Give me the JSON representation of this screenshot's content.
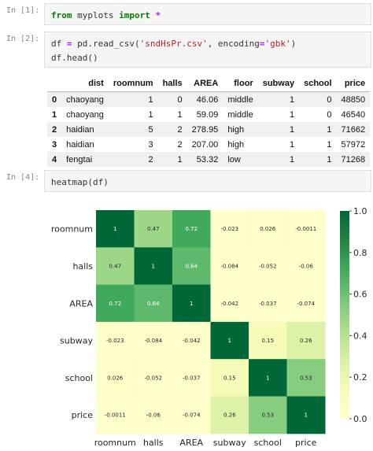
{
  "cells": [
    {
      "prompt": "In [1]:",
      "code": [
        {
          "kw": "from"
        },
        {
          "t": " myplots "
        },
        {
          "kw": "import"
        },
        {
          "t": " "
        },
        {
          "op": "*"
        }
      ]
    },
    {
      "prompt": "In [2]:",
      "code_lines": [
        [
          {
            "t": "df "
          },
          {
            "op": "="
          },
          {
            "t": " pd.read_csv("
          },
          {
            "str": "'sndHsPr.csv'"
          },
          {
            "t": ", encoding"
          },
          {
            "op": "="
          },
          {
            "str": "'gbk'"
          },
          {
            "t": ")"
          }
        ],
        [
          {
            "t": "df.head()"
          }
        ]
      ]
    },
    {
      "prompt": "In [4]:",
      "code": [
        {
          "t": "heatmap(df)"
        }
      ]
    }
  ],
  "dataframe": {
    "columns": [
      "dist",
      "roomnum",
      "halls",
      "AREA",
      "floor",
      "subway",
      "school",
      "price"
    ],
    "index": [
      "0",
      "1",
      "2",
      "3",
      "4"
    ],
    "rows": [
      [
        "chaoyang",
        "1",
        "0",
        "46.06",
        "middle",
        "1",
        "0",
        "48850"
      ],
      [
        "chaoyang",
        "1",
        "1",
        "59.09",
        "middle",
        "1",
        "0",
        "46540"
      ],
      [
        "haidian",
        "5",
        "2",
        "278.95",
        "high",
        "1",
        "1",
        "71662"
      ],
      [
        "haidian",
        "3",
        "2",
        "207.00",
        "high",
        "1",
        "1",
        "57972"
      ],
      [
        "fengtai",
        "2",
        "1",
        "53.32",
        "low",
        "1",
        "1",
        "71268"
      ]
    ]
  },
  "chart_data": {
    "type": "heatmap",
    "rows": [
      "roomnum",
      "halls",
      "AREA",
      "subway",
      "school",
      "price"
    ],
    "cols": [
      "roomnum",
      "halls",
      "AREA",
      "subway",
      "school",
      "price"
    ],
    "values": [
      [
        1,
        0.47,
        0.72,
        -0.023,
        0.026,
        -0.0011
      ],
      [
        0.47,
        1,
        0.64,
        -0.084,
        -0.052,
        -0.06
      ],
      [
        0.72,
        0.64,
        1,
        -0.042,
        -0.037,
        -0.074
      ],
      [
        -0.023,
        -0.084,
        -0.042,
        1,
        0.15,
        0.26
      ],
      [
        0.026,
        -0.052,
        -0.037,
        0.15,
        1,
        0.53
      ],
      [
        -0.0011,
        -0.06,
        -0.074,
        0.26,
        0.53,
        1
      ]
    ],
    "labels": [
      [
        "1",
        "0.47",
        "0.72",
        "-0.023",
        "0.026",
        "-0.0011"
      ],
      [
        "0.47",
        "1",
        "0.64",
        "-0.084",
        "-0.052",
        "-0.06"
      ],
      [
        "0.72",
        "0.64",
        "1",
        "-0.042",
        "-0.037",
        "-0.074"
      ],
      [
        "-0.023",
        "-0.084",
        "-0.042",
        "1",
        "0.15",
        "0.26"
      ],
      [
        "0.026",
        "-0.052",
        "-0.037",
        "0.15",
        "1",
        "0.53"
      ],
      [
        "-0.0011",
        "-0.06",
        "-0.074",
        "0.26",
        "0.53",
        "1"
      ]
    ],
    "colormap": "YlGn",
    "vmin": 0,
    "vmax": 1,
    "colorbar_ticks": [
      "0.0",
      "0.2",
      "0.4",
      "0.6",
      "0.8",
      "1.0"
    ],
    "colors": {
      "low": "#ffffcc",
      "high": "#006837"
    }
  }
}
